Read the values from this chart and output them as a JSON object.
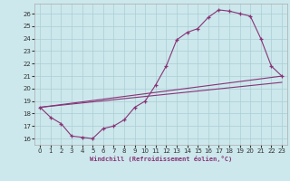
{
  "xlabel": "Windchill (Refroidissement éolien,°C)",
  "xlim": [
    -0.5,
    23.5
  ],
  "ylim": [
    15.5,
    26.8
  ],
  "xticks": [
    0,
    1,
    2,
    3,
    4,
    5,
    6,
    7,
    8,
    9,
    10,
    11,
    12,
    13,
    14,
    15,
    16,
    17,
    18,
    19,
    20,
    21,
    22,
    23
  ],
  "yticks": [
    16,
    17,
    18,
    19,
    20,
    21,
    22,
    23,
    24,
    25,
    26
  ],
  "bg_color": "#cce8ec",
  "grid_color": "#aacdd4",
  "line_color": "#883377",
  "line1_x": [
    0,
    1,
    2,
    3,
    4,
    5,
    6,
    7,
    8,
    9,
    10,
    11,
    12,
    13,
    14,
    15,
    16,
    17,
    18,
    19,
    20,
    21,
    22,
    23
  ],
  "line1_y": [
    18.5,
    17.7,
    17.2,
    16.2,
    16.1,
    16.0,
    16.8,
    17.0,
    17.5,
    18.5,
    19.0,
    20.3,
    21.8,
    23.9,
    24.5,
    24.8,
    25.7,
    26.3,
    26.2,
    26.0,
    25.8,
    24.0,
    21.8,
    21.0
  ],
  "line2_x": [
    0,
    23
  ],
  "line2_y": [
    18.5,
    21.0
  ],
  "line3_x": [
    0,
    23
  ],
  "line3_y": [
    18.5,
    20.5
  ]
}
